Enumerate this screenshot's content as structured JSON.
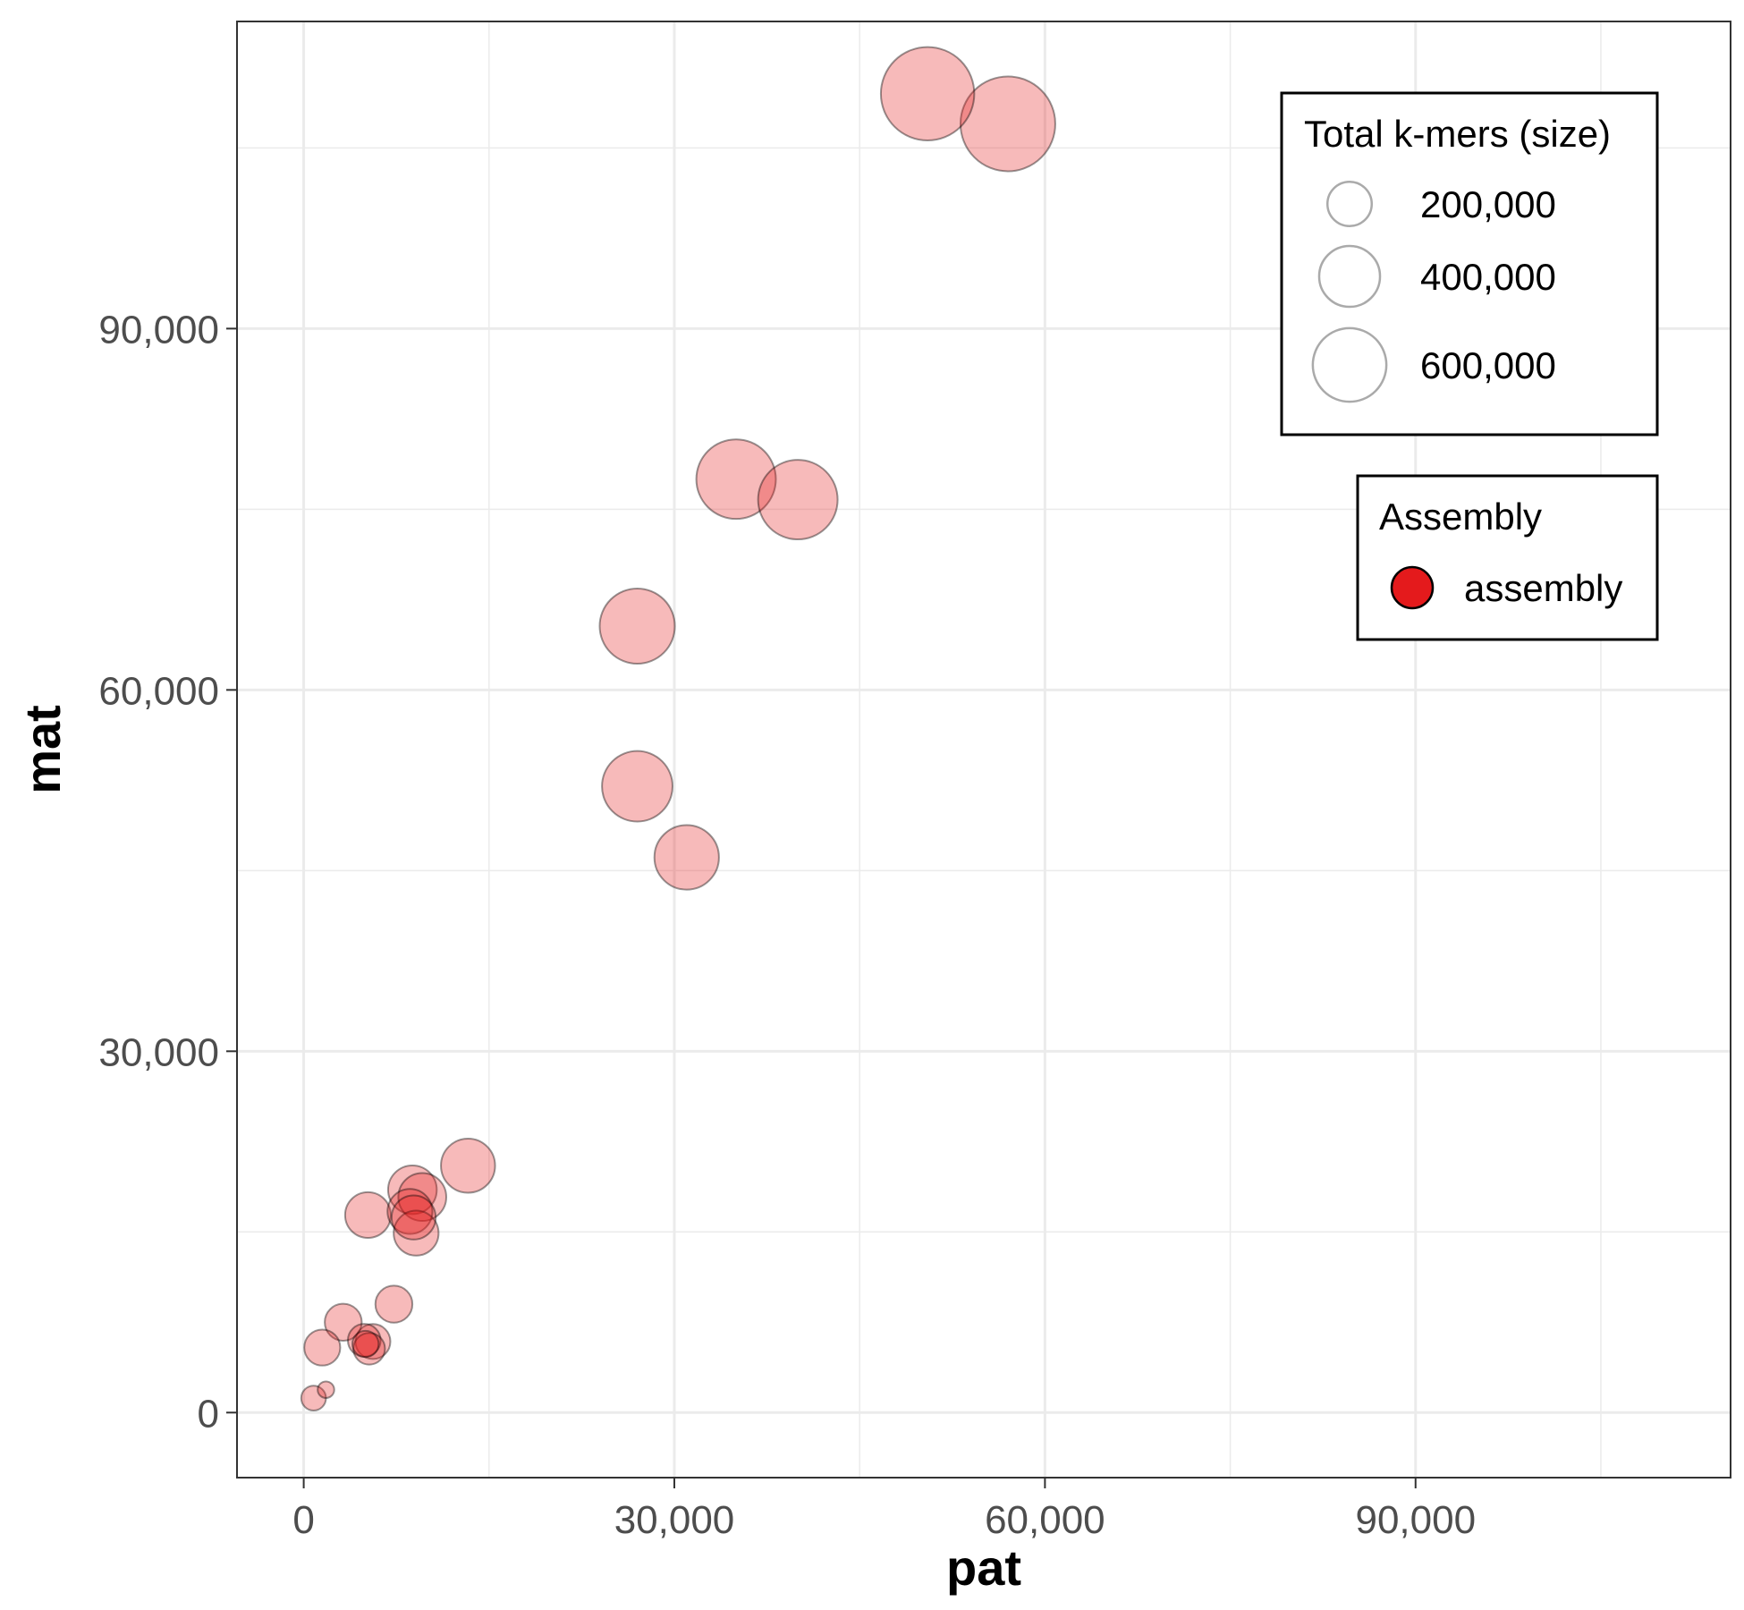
{
  "chart_data": {
    "type": "scatter",
    "xlabel": "pat",
    "ylabel": "mat",
    "xlim": [
      -5400,
      115500
    ],
    "ylim": [
      -5400,
      115500
    ],
    "x_ticks": [
      0,
      30000,
      60000,
      90000
    ],
    "x_tick_labels": [
      "0",
      "30,000",
      "60,000",
      "90,000"
    ],
    "y_ticks": [
      0,
      30000,
      60000,
      90000
    ],
    "y_tick_labels": [
      "0",
      "30,000",
      "60,000",
      "90,000"
    ],
    "grid": true,
    "size_legend": {
      "title": "Total k-mers (size)",
      "entries": [
        {
          "label": "200,000",
          "value": 200000
        },
        {
          "label": "400,000",
          "value": 400000
        },
        {
          "label": "600,000",
          "value": 600000
        }
      ]
    },
    "color_legend": {
      "title": "Assembly",
      "entries": [
        {
          "label": "assembly",
          "color": "#e41a1c"
        }
      ]
    },
    "fill_color": "#e41a1c",
    "point_alpha": 0.3,
    "series": [
      {
        "name": "assembly",
        "points": [
          {
            "x": 50500,
            "y": 109500,
            "size": 620000
          },
          {
            "x": 57000,
            "y": 107000,
            "size": 640000
          },
          {
            "x": 35000,
            "y": 77500,
            "size": 440000
          },
          {
            "x": 40000,
            "y": 75800,
            "size": 440000
          },
          {
            "x": 27000,
            "y": 65300,
            "size": 390000
          },
          {
            "x": 27000,
            "y": 52000,
            "size": 340000
          },
          {
            "x": 31000,
            "y": 46100,
            "size": 280000
          },
          {
            "x": 13300,
            "y": 20500,
            "size": 190000
          },
          {
            "x": 8800,
            "y": 18500,
            "size": 150000
          },
          {
            "x": 9600,
            "y": 17900,
            "size": 145000
          },
          {
            "x": 5200,
            "y": 16400,
            "size": 130000
          },
          {
            "x": 8600,
            "y": 16700,
            "size": 125000
          },
          {
            "x": 8900,
            "y": 16200,
            "size": 120000
          },
          {
            "x": 9100,
            "y": 14900,
            "size": 125000
          },
          {
            "x": 7300,
            "y": 9000,
            "size": 80000
          },
          {
            "x": 3200,
            "y": 7500,
            "size": 80000
          },
          {
            "x": 1500,
            "y": 5400,
            "size": 75000
          },
          {
            "x": 4900,
            "y": 6000,
            "size": 60000
          },
          {
            "x": 5600,
            "y": 5900,
            "size": 70000
          },
          {
            "x": 5300,
            "y": 5300,
            "size": 55000
          },
          {
            "x": 5000,
            "y": 5700,
            "size": 35000
          },
          {
            "x": 800,
            "y": 1200,
            "size": 30000
          },
          {
            "x": 1800,
            "y": 1900,
            "size": 10000
          }
        ]
      }
    ]
  }
}
